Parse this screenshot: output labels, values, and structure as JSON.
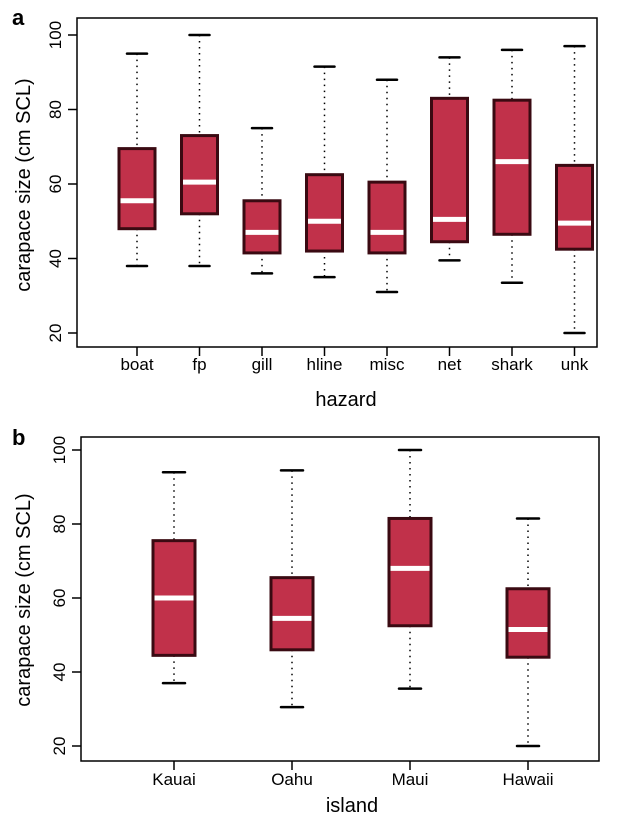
{
  "chart_data": [
    {
      "type": "boxplot",
      "panel_label": "a",
      "xlabel": "hazard",
      "ylabel": "carapace size (cm SCL)",
      "ylim": [
        17,
        103
      ],
      "yticks": [
        20,
        40,
        60,
        80,
        100
      ],
      "categories": [
        "boat",
        "fp",
        "gill",
        "hline",
        "misc",
        "net",
        "shark",
        "unk"
      ],
      "boxes": [
        {
          "min": 38,
          "q1": 48,
          "median": 55.5,
          "q3": 69.5,
          "max": 95
        },
        {
          "min": 38,
          "q1": 52,
          "median": 60.5,
          "q3": 73,
          "max": 100
        },
        {
          "min": 36,
          "q1": 41.5,
          "median": 47,
          "q3": 55.5,
          "max": 75
        },
        {
          "min": 35,
          "q1": 42,
          "median": 50,
          "q3": 62.5,
          "max": 91.5
        },
        {
          "min": 31,
          "q1": 41.5,
          "median": 47,
          "q3": 60.5,
          "max": 88
        },
        {
          "min": 39.5,
          "q1": 44.5,
          "median": 50.5,
          "q3": 83,
          "max": 94
        },
        {
          "min": 33.5,
          "q1": 46.5,
          "median": 66,
          "q3": 82.5,
          "max": 96
        },
        {
          "min": 20,
          "q1": 42.5,
          "median": 49.5,
          "q3": 65,
          "max": 97
        }
      ],
      "box_fill": "#c1314a",
      "box_stroke": "#3a0a12",
      "median_color": "#ffffff",
      "grid": false
    },
    {
      "type": "boxplot",
      "panel_label": "b",
      "xlabel": "island",
      "ylabel": "carapace size (cm SCL)",
      "ylim": [
        18,
        102
      ],
      "yticks": [
        20,
        40,
        60,
        80,
        100
      ],
      "categories": [
        "Kauai",
        "Oahu",
        "Maui",
        "Hawaii"
      ],
      "boxes": [
        {
          "min": 37,
          "q1": 44.5,
          "median": 60,
          "q3": 75.5,
          "max": 94
        },
        {
          "min": 30.5,
          "q1": 46,
          "median": 54.5,
          "q3": 65.5,
          "max": 94.5
        },
        {
          "min": 35.5,
          "q1": 52.5,
          "median": 68,
          "q3": 81.5,
          "max": 100
        },
        {
          "min": 20,
          "q1": 44,
          "median": 51.5,
          "q3": 62.5,
          "max": 81.5
        }
      ],
      "box_fill": "#c1314a",
      "box_stroke": "#3a0a12",
      "median_color": "#ffffff",
      "grid": false
    }
  ]
}
